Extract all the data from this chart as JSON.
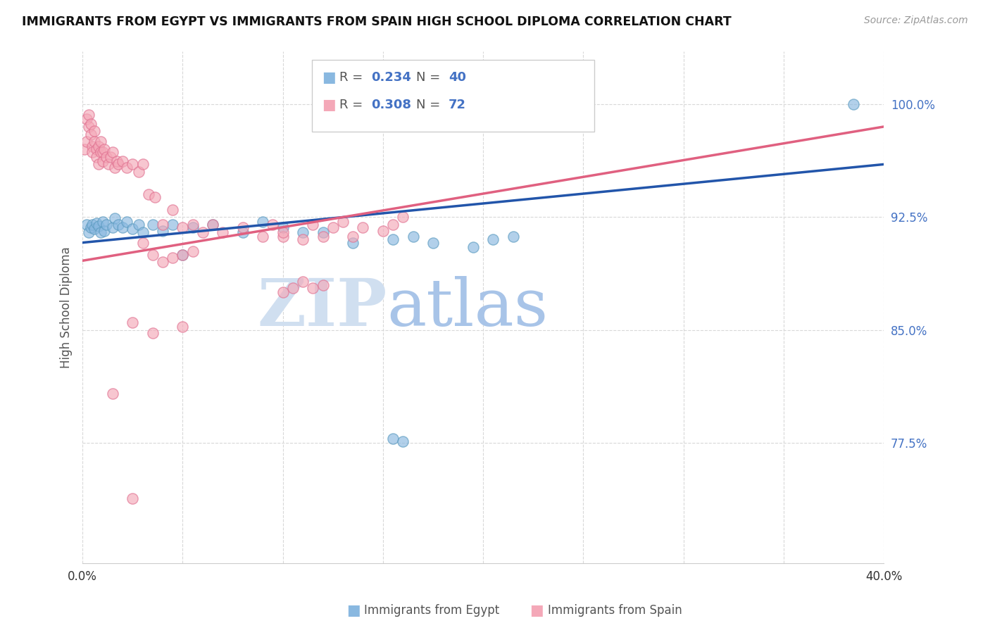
{
  "title": "IMMIGRANTS FROM EGYPT VS IMMIGRANTS FROM SPAIN HIGH SCHOOL DIPLOMA CORRELATION CHART",
  "source": "Source: ZipAtlas.com",
  "ylabel": "High School Diploma",
  "ytick_values": [
    1.0,
    0.925,
    0.85,
    0.775
  ],
  "xlim": [
    0.0,
    0.4
  ],
  "ylim": [
    0.695,
    1.035
  ],
  "egypt_color": "#89b8e0",
  "spain_color": "#f4a8b8",
  "egypt_edge_color": "#5a9abf",
  "spain_edge_color": "#e07090",
  "egypt_label": "Immigrants from Egypt",
  "spain_label": "Immigrants from Spain",
  "egypt_R": "0.234",
  "egypt_N": "40",
  "spain_R": "0.308",
  "spain_N": "72",
  "egypt_scatter_x": [
    0.002,
    0.003,
    0.004,
    0.005,
    0.006,
    0.007,
    0.008,
    0.009,
    0.01,
    0.011,
    0.012,
    0.015,
    0.016,
    0.018,
    0.02,
    0.022,
    0.025,
    0.028,
    0.03,
    0.035,
    0.04,
    0.045,
    0.05,
    0.055,
    0.065,
    0.08,
    0.09,
    0.1,
    0.11,
    0.12,
    0.135,
    0.155,
    0.165,
    0.175,
    0.195,
    0.205,
    0.215,
    0.155,
    0.16,
    0.385
  ],
  "egypt_scatter_y": [
    0.92,
    0.915,
    0.918,
    0.92,
    0.917,
    0.921,
    0.919,
    0.915,
    0.922,
    0.916,
    0.92,
    0.918,
    0.924,
    0.92,
    0.918,
    0.922,
    0.917,
    0.92,
    0.915,
    0.92,
    0.916,
    0.92,
    0.9,
    0.918,
    0.92,
    0.915,
    0.922,
    0.918,
    0.915,
    0.915,
    0.908,
    0.91,
    0.912,
    0.908,
    0.905,
    0.91,
    0.912,
    0.778,
    0.776,
    1.0
  ],
  "spain_scatter_x": [
    0.001,
    0.002,
    0.002,
    0.003,
    0.003,
    0.004,
    0.004,
    0.005,
    0.005,
    0.006,
    0.006,
    0.007,
    0.007,
    0.008,
    0.008,
    0.009,
    0.009,
    0.01,
    0.01,
    0.011,
    0.012,
    0.013,
    0.014,
    0.015,
    0.016,
    0.017,
    0.018,
    0.02,
    0.022,
    0.025,
    0.028,
    0.03,
    0.033,
    0.036,
    0.04,
    0.045,
    0.05,
    0.055,
    0.06,
    0.065,
    0.07,
    0.08,
    0.09,
    0.095,
    0.1,
    0.1,
    0.11,
    0.115,
    0.12,
    0.125,
    0.13,
    0.135,
    0.14,
    0.15,
    0.155,
    0.16,
    0.03,
    0.035,
    0.04,
    0.045,
    0.05,
    0.055,
    0.1,
    0.105,
    0.11,
    0.115,
    0.12,
    0.025,
    0.05,
    0.035,
    0.015,
    0.025
  ],
  "spain_scatter_y": [
    0.97,
    0.975,
    0.99,
    0.985,
    0.993,
    0.98,
    0.987,
    0.972,
    0.968,
    0.975,
    0.982,
    0.97,
    0.965,
    0.972,
    0.96,
    0.968,
    0.975,
    0.962,
    0.968,
    0.97,
    0.965,
    0.96,
    0.965,
    0.968,
    0.958,
    0.962,
    0.96,
    0.962,
    0.958,
    0.96,
    0.955,
    0.96,
    0.94,
    0.938,
    0.92,
    0.93,
    0.918,
    0.92,
    0.915,
    0.92,
    0.915,
    0.918,
    0.912,
    0.92,
    0.912,
    0.915,
    0.91,
    0.92,
    0.912,
    0.918,
    0.922,
    0.912,
    0.918,
    0.916,
    0.92,
    0.925,
    0.908,
    0.9,
    0.895,
    0.898,
    0.9,
    0.902,
    0.875,
    0.878,
    0.882,
    0.878,
    0.88,
    0.855,
    0.852,
    0.848,
    0.808,
    0.738
  ],
  "background_color": "#ffffff",
  "grid_color": "#d8d8d8",
  "watermark_zip_color": "#d0dff0",
  "watermark_atlas_color": "#a8c4e8",
  "trendline_egypt_color": "#2255aa",
  "trendline_spain_color": "#e06080",
  "trendline_egypt_x0": 0.0,
  "trendline_egypt_y0": 0.908,
  "trendline_egypt_x1": 0.4,
  "trendline_egypt_y1": 0.96,
  "trendline_spain_x0": 0.0,
  "trendline_spain_y0": 0.896,
  "trendline_spain_x1": 0.4,
  "trendline_spain_y1": 0.985
}
